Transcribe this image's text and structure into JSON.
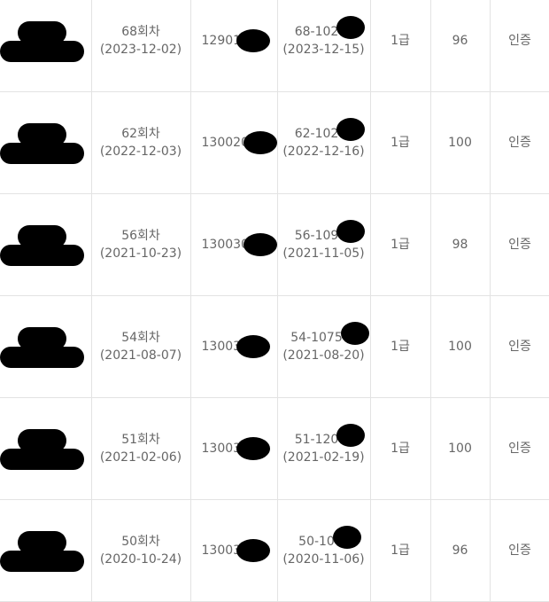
{
  "rows": [
    {
      "round": "68회차",
      "exam_date": "(2023-12-02)",
      "id": "12901",
      "cert_no": "68-102",
      "issue_date": "(2023-12-15)",
      "grade": "1급",
      "score": "96",
      "status": "인증"
    },
    {
      "round": "62회차",
      "exam_date": "(2022-12-03)",
      "id": "130020",
      "cert_no": "62-102",
      "issue_date": "(2022-12-16)",
      "grade": "1급",
      "score": "100",
      "status": "인증"
    },
    {
      "round": "56회차",
      "exam_date": "(2021-10-23)",
      "id": "130030",
      "cert_no": "56-109",
      "issue_date": "(2021-11-05)",
      "grade": "1급",
      "score": "98",
      "status": "인증"
    },
    {
      "round": "54회차",
      "exam_date": "(2021-08-07)",
      "id": "13003",
      "cert_no": "54-1075",
      "issue_date": "(2021-08-20)",
      "grade": "1급",
      "score": "100",
      "status": "인증"
    },
    {
      "round": "51회차",
      "exam_date": "(2021-02-06)",
      "id": "13003",
      "cert_no": "51-120",
      "issue_date": "(2021-02-19)",
      "grade": "1급",
      "score": "100",
      "status": "인증"
    },
    {
      "round": "50회차",
      "exam_date": "(2020-10-24)",
      "id": "13003",
      "cert_no": "50-10",
      "issue_date": "(2020-11-06)",
      "grade": "1급",
      "score": "96",
      "status": "인증"
    }
  ]
}
